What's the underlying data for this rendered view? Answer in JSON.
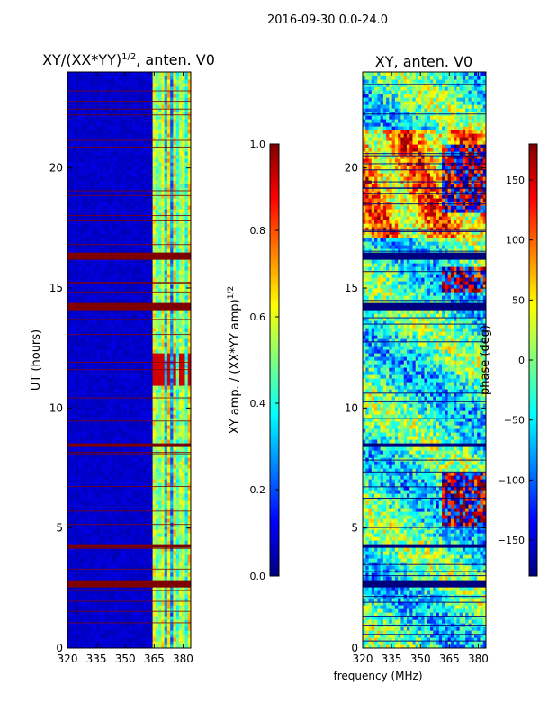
{
  "suptitle": "2016-09-30 0.0-24.0",
  "colors": {
    "jet": [
      "#00007f",
      "#0000ff",
      "#007fff",
      "#00ffff",
      "#7fff7f",
      "#ffff00",
      "#ff7f00",
      "#ff0000",
      "#7f0000"
    ],
    "flag_band": "#7f0000",
    "axis": "#000000",
    "background": "#ffffff"
  },
  "chart_data": [
    {
      "type": "heatmap",
      "panel": "amplitude-ratio",
      "title_main": "XY/(XX*YY)",
      "title_exp": "1/2",
      "title_suffix": ", anten. V0",
      "xlabel": "",
      "ylabel": "UT (hours)",
      "xlim": [
        320,
        384
      ],
      "ylim": [
        0,
        24
      ],
      "xticks": [
        320,
        335,
        350,
        365,
        380
      ],
      "yticks": [
        0,
        5,
        10,
        15,
        20
      ],
      "flagged_time_bands_hours": [
        [
          2.5,
          2.7
        ],
        [
          4.1,
          4.3
        ],
        [
          8.3,
          8.5
        ],
        [
          14.1,
          14.3
        ],
        [
          16.1,
          16.4
        ]
      ],
      "active_band_mhz": [
        363,
        384
      ],
      "colorbar": {
        "label_main": "XY amp. / (XX*YY amp)",
        "label_exp": "1/2",
        "ticks": [
          0.0,
          0.2,
          0.4,
          0.6,
          0.8,
          1.0
        ],
        "tick_labels": [
          "0.0",
          "0.2",
          "0.4",
          "0.6",
          "0.8",
          "1.0"
        ],
        "range": [
          0.0,
          1.0
        ]
      }
    },
    {
      "type": "heatmap",
      "panel": "phase",
      "title": "XY, anten. V0",
      "xlabel": "frequency (MHz)",
      "ylabel": "",
      "xlim": [
        320,
        384
      ],
      "ylim": [
        0,
        24
      ],
      "xticks": [
        320,
        335,
        350,
        365,
        380
      ],
      "yticks": [
        0,
        5,
        10,
        15,
        20
      ],
      "flagged_time_bands_hours": [
        [
          2.5,
          2.7
        ],
        [
          4.1,
          4.3
        ],
        [
          8.3,
          8.5
        ],
        [
          14.1,
          14.3
        ],
        [
          16.1,
          16.4
        ]
      ],
      "colorbar": {
        "label": "phase (deg)",
        "ticks": [
          -150,
          -100,
          -50,
          0,
          50,
          100,
          150
        ],
        "tick_labels": [
          "−150",
          "−100",
          "−50",
          "0",
          "50",
          "100",
          "150"
        ],
        "range": [
          -180,
          180
        ]
      }
    }
  ]
}
